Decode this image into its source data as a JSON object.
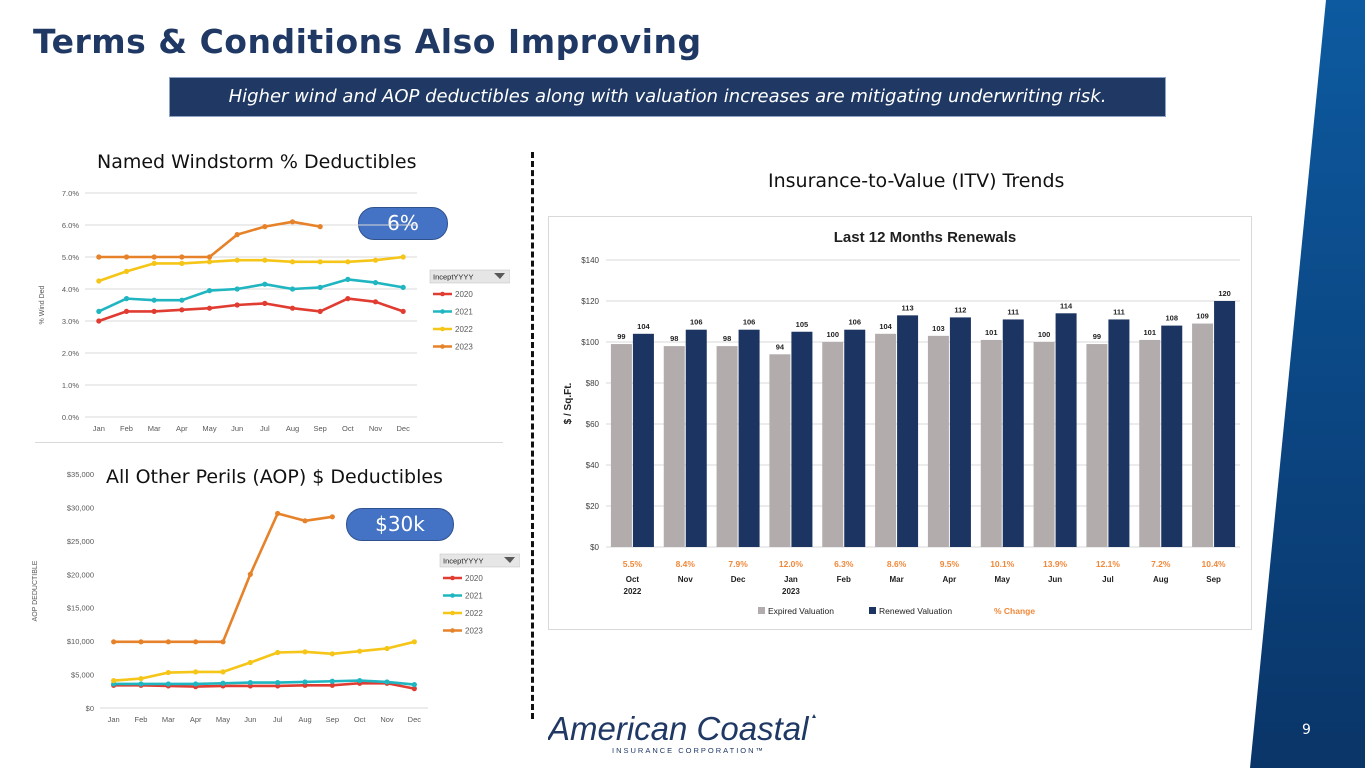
{
  "slide": {
    "title": "Terms & Conditions Also Improving",
    "banner": "Higher wind and AOP deductibles along with valuation increases are mitigating underwriting risk.",
    "page_number": "9",
    "colors": {
      "title": "#1f3864",
      "banner_bg": "#1f3864",
      "pill": "#4472c4",
      "brand_blue": "#0f4f8f"
    }
  },
  "logo": {
    "name": "American Coastal",
    "tagline": "INSURANCE CORPORATION™"
  },
  "wind": {
    "heading": "Named Windstorm % Deductibles",
    "badge": "6%"
  },
  "aop": {
    "heading": "All Other Perils (AOP) $ Deductibles",
    "badge": "$30k"
  },
  "itv": {
    "heading": "Insurance-to-Value (ITV) Trends"
  },
  "chart_data": [
    {
      "id": "wind",
      "type": "line",
      "ylabel": "% Wind Ded",
      "ylim": [
        0,
        7
      ],
      "ytick_labels": [
        "0.0%",
        "1.0%",
        "2.0%",
        "3.0%",
        "4.0%",
        "5.0%",
        "6.0%",
        "7.0%"
      ],
      "categories": [
        "Jan",
        "Feb",
        "Mar",
        "Apr",
        "May",
        "Jun",
        "Jul",
        "Aug",
        "Sep",
        "Oct",
        "Nov",
        "Dec"
      ],
      "legend_title": "InceptYYYY",
      "legend_position": "right",
      "grid": true,
      "series": [
        {
          "name": "2020",
          "color": "#e03c31",
          "values": [
            3.0,
            3.3,
            3.3,
            3.35,
            3.4,
            3.5,
            3.55,
            3.4,
            3.3,
            3.7,
            3.6,
            3.3
          ]
        },
        {
          "name": "2021",
          "color": "#1fb5c1",
          "values": [
            3.3,
            3.7,
            3.65,
            3.65,
            3.95,
            4.0,
            4.15,
            4.0,
            4.05,
            4.3,
            4.2,
            4.05
          ]
        },
        {
          "name": "2022",
          "color": "#f5c518",
          "values": [
            4.25,
            4.55,
            4.8,
            4.8,
            4.85,
            4.9,
            4.9,
            4.85,
            4.85,
            4.85,
            4.9,
            5.0
          ]
        },
        {
          "name": "2023",
          "color": "#e5822a",
          "values": [
            5.0,
            5.0,
            5.0,
            5.0,
            5.0,
            5.7,
            5.95,
            6.1,
            5.95,
            null,
            null,
            null
          ]
        }
      ]
    },
    {
      "id": "aop",
      "type": "line",
      "ylabel": "AOP DEDUCTIBLE",
      "ylim": [
        0,
        35000
      ],
      "ytick_labels": [
        "$0",
        "$5,000",
        "$10,000",
        "$15,000",
        "$20,000",
        "$25,000",
        "$30,000",
        "$35,000"
      ],
      "categories": [
        "Jan",
        "Feb",
        "Mar",
        "Apr",
        "May",
        "Jun",
        "Jul",
        "Aug",
        "Sep",
        "Oct",
        "Nov",
        "Dec"
      ],
      "legend_title": "InceptYYYY",
      "legend_position": "right",
      "grid": false,
      "series": [
        {
          "name": "2020",
          "color": "#e03c31",
          "values": [
            3400,
            3400,
            3300,
            3200,
            3300,
            3300,
            3300,
            3400,
            3400,
            3700,
            3700,
            2900
          ]
        },
        {
          "name": "2021",
          "color": "#1fb5c1",
          "values": [
            3600,
            3600,
            3600,
            3600,
            3700,
            3800,
            3800,
            3900,
            4000,
            4100,
            3900,
            3500
          ]
        },
        {
          "name": "2022",
          "color": "#f5c518",
          "values": [
            4100,
            4400,
            5300,
            5400,
            5400,
            6800,
            8300,
            8400,
            8100,
            8500,
            8900,
            9900
          ]
        },
        {
          "name": "2023",
          "color": "#e5822a",
          "values": [
            9900,
            9900,
            9900,
            9900,
            9900,
            20000,
            29100,
            28000,
            28600,
            null,
            null,
            null
          ]
        }
      ]
    },
    {
      "id": "itv",
      "type": "bar",
      "title": "Last 12 Months Renewals",
      "ylabel": "$ / Sq.Ft.",
      "ylim": [
        0,
        140
      ],
      "ytick_labels": [
        "$0",
        "$20",
        "$40",
        "$60",
        "$80",
        "$100",
        "$120",
        "$140"
      ],
      "categories": [
        "Oct",
        "Nov",
        "Dec",
        "Jan",
        "Feb",
        "Mar",
        "Apr",
        "May",
        "Jun",
        "Jul",
        "Aug",
        "Sep"
      ],
      "category_sublabels": [
        "2022",
        "",
        "",
        "2023",
        "",
        "",
        "",
        "",
        "",
        "",
        "",
        ""
      ],
      "grid": true,
      "legend_position": "bottom",
      "series": [
        {
          "name": "Expired Valuation",
          "color": "#b3acac",
          "values": [
            99,
            98,
            98,
            94,
            100,
            104,
            103,
            101,
            100,
            99,
            101,
            109
          ]
        },
        {
          "name": "Renewed Valuation",
          "color": "#1b3461",
          "values": [
            104,
            106,
            106,
            105,
            106,
            113,
            112,
            111,
            114,
            111,
            108,
            120
          ]
        }
      ],
      "pct_change": {
        "name": "% Change",
        "color": "#f0883a",
        "values": [
          "5.5%",
          "8.4%",
          "7.9%",
          "12.0%",
          "6.3%",
          "8.6%",
          "9.5%",
          "10.1%",
          "13.9%",
          "12.1%",
          "7.2%",
          "10.4%"
        ]
      }
    }
  ]
}
